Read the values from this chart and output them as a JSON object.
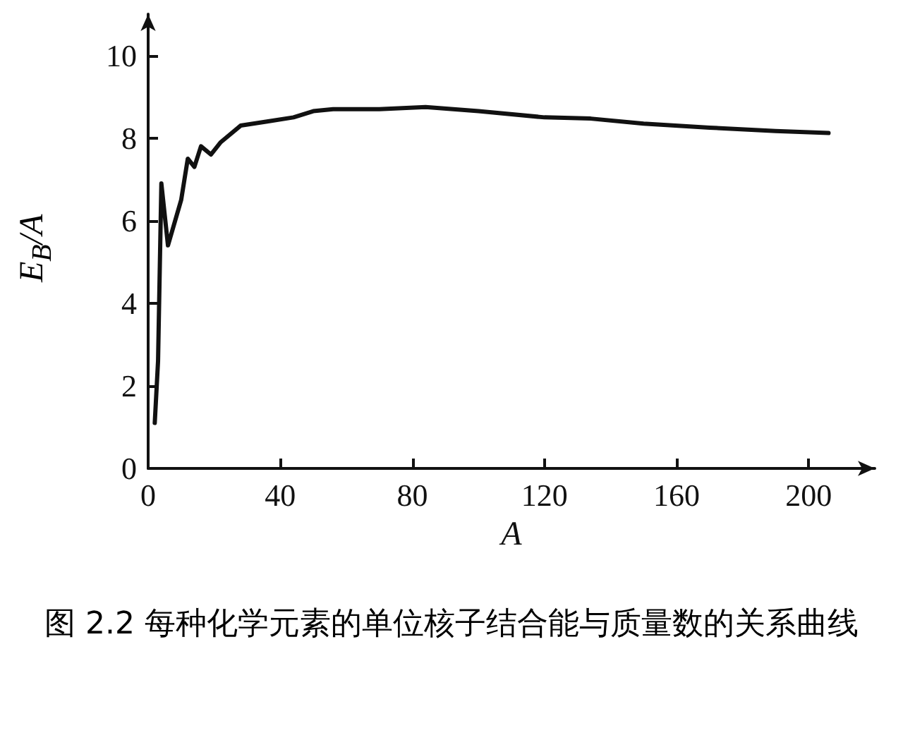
{
  "chart_data": {
    "type": "line",
    "xlabel": "A",
    "ylabel": "E$_{B}$/A",
    "annotations": [
      "图 2.2  每种化学元素的单位核子结合能与质量数的关系曲线"
    ],
    "xlim": [
      0,
      220
    ],
    "xticks": [
      0,
      40,
      80,
      120,
      160,
      200
    ],
    "ylim": [
      0,
      11
    ],
    "yticks": [
      0,
      2,
      4,
      6,
      8,
      10
    ],
    "grid": false,
    "marker": "none",
    "line_style": "solid",
    "series": [
      {
        "color": "#111111",
        "x": [
          2,
          3,
          4,
          6,
          10,
          12,
          14,
          16,
          19,
          22,
          28,
          36,
          44,
          50,
          56,
          70,
          84,
          100,
          120,
          134,
          150,
          170,
          190,
          206
        ],
        "values": [
          1.1,
          2.6,
          6.9,
          5.4,
          6.5,
          7.5,
          7.3,
          7.8,
          7.6,
          7.9,
          8.3,
          8.4,
          8.5,
          8.65,
          8.7,
          8.7,
          8.75,
          8.65,
          8.5,
          8.47,
          8.35,
          8.25,
          8.17,
          8.12
        ]
      }
    ]
  }
}
